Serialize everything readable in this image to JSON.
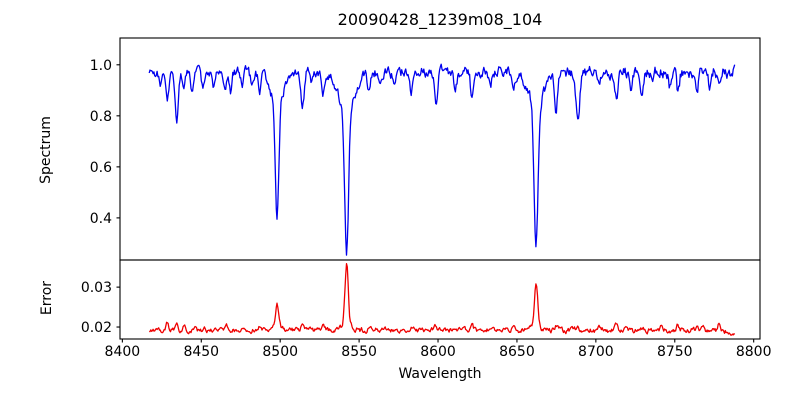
{
  "chart_data": {
    "type": "line",
    "title": "20090428_1239m08_104",
    "xlabel": "Wavelength",
    "grid": false,
    "legend": null,
    "x_range": {
      "start": 8417,
      "end": 8788,
      "step": 0.5
    },
    "xlim": [
      8398.5,
      8804
    ],
    "xticks": [
      8400,
      8450,
      8500,
      8550,
      8600,
      8650,
      8700,
      8750,
      8800
    ],
    "xtick_labels": [
      "8400",
      "8450",
      "8500",
      "8550",
      "8600",
      "8650",
      "8700",
      "8750",
      "8800"
    ],
    "features_format": "each feature = [center_wavelength_angstrom, gaussian_sigma_angstrom, amplitude (negative = absorption dip, positive = peak)]",
    "main_absorption_lines": [
      {
        "wavelength": 8498,
        "min_flux": 0.41
      },
      {
        "wavelength": 8542,
        "min_flux": 0.27
      },
      {
        "wavelength": 8662,
        "min_flux": 0.29
      }
    ],
    "panels": [
      {
        "name": "spectrum",
        "ylabel": "Spectrum",
        "color": "#0000ee",
        "ylim": [
          0.235,
          1.105
        ],
        "yticks": [
          0.4,
          0.6,
          0.8,
          1.0
        ],
        "ytick_labels": [
          "0.4",
          "0.6",
          "0.8",
          "1.0"
        ],
        "base_level": 0.972,
        "noise_scale": 0.034,
        "noise_ramp": 0.35,
        "noise_seed": 42,
        "features": [
          [
            8498.0,
            1.1,
            -0.45
          ],
          [
            8498.0,
            4.0,
            -0.13
          ],
          [
            8542.1,
            1.2,
            -0.55
          ],
          [
            8542.1,
            5.0,
            -0.15
          ],
          [
            8662.1,
            1.2,
            -0.54
          ],
          [
            8662.1,
            4.5,
            -0.14
          ],
          [
            8424.0,
            0.9,
            -0.05
          ],
          [
            8428.5,
            0.9,
            -0.12
          ],
          [
            8434.5,
            1.0,
            -0.2
          ],
          [
            8439.0,
            0.9,
            -0.05
          ],
          [
            8444.0,
            0.9,
            -0.07
          ],
          [
            8451.0,
            0.9,
            -0.06
          ],
          [
            8458.0,
            0.9,
            -0.07
          ],
          [
            8465.0,
            0.9,
            -0.06
          ],
          [
            8468.5,
            0.9,
            -0.08
          ],
          [
            8476.0,
            0.9,
            -0.05
          ],
          [
            8482.0,
            0.9,
            -0.05
          ],
          [
            8487.0,
            0.9,
            -0.07
          ],
          [
            8514.2,
            1.0,
            -0.13
          ],
          [
            8520.0,
            0.9,
            -0.05
          ],
          [
            8527.0,
            0.9,
            -0.08
          ],
          [
            8556.0,
            0.9,
            -0.05
          ],
          [
            8564.0,
            0.9,
            -0.05
          ],
          [
            8572.0,
            0.9,
            -0.04
          ],
          [
            8583.0,
            0.9,
            -0.08
          ],
          [
            8598.8,
            1.0,
            -0.13
          ],
          [
            8611.0,
            0.9,
            -0.06
          ],
          [
            8621.5,
            0.9,
            -0.1
          ],
          [
            8633.0,
            0.9,
            -0.06
          ],
          [
            8648.0,
            0.9,
            -0.06
          ],
          [
            8674.8,
            1.0,
            -0.14
          ],
          [
            8688.6,
            1.1,
            -0.2
          ],
          [
            8702.0,
            0.9,
            -0.06
          ],
          [
            8713.0,
            0.9,
            -0.1
          ],
          [
            8722.0,
            0.9,
            -0.06
          ],
          [
            8729.0,
            0.9,
            -0.08
          ],
          [
            8736.0,
            0.9,
            -0.05
          ],
          [
            8747.0,
            0.9,
            -0.06
          ],
          [
            8752.0,
            0.9,
            -0.09
          ],
          [
            8764.0,
            0.9,
            -0.08
          ],
          [
            8772.0,
            0.9,
            -0.05
          ],
          [
            8778.0,
            0.9,
            -0.06
          ]
        ]
      },
      {
        "name": "error",
        "ylabel": "Error",
        "color": "#ee0000",
        "ylim": [
          0.017,
          0.0368
        ],
        "yticks": [
          0.02,
          0.03
        ],
        "ytick_labels": [
          "0.02",
          "0.03"
        ],
        "base_level": 0.0192,
        "noise_scale": 0.0011,
        "noise_ramp": 0.2,
        "noise_seed": 7,
        "features": [
          [
            8498.0,
            0.9,
            0.006
          ],
          [
            8498.0,
            2.5,
            0.0012
          ],
          [
            8542.1,
            1.0,
            0.0148
          ],
          [
            8542.1,
            2.8,
            0.002
          ],
          [
            8662.1,
            1.0,
            0.0105
          ],
          [
            8662.1,
            2.5,
            0.0015
          ],
          [
            8428.5,
            0.8,
            0.0018
          ],
          [
            8434.5,
            0.8,
            0.0022
          ],
          [
            8439.0,
            0.8,
            0.0008
          ],
          [
            8446.0,
            0.8,
            0.0008
          ],
          [
            8452.0,
            0.8,
            0.0008
          ],
          [
            8466.0,
            0.8,
            0.0012
          ],
          [
            8476.0,
            0.8,
            0.0006
          ],
          [
            8487.0,
            0.8,
            0.0008
          ],
          [
            8514.2,
            0.8,
            0.0014
          ],
          [
            8527.0,
            0.8,
            0.0008
          ],
          [
            8556.0,
            0.8,
            0.0006
          ],
          [
            8583.0,
            0.8,
            0.0008
          ],
          [
            8598.8,
            0.8,
            0.0012
          ],
          [
            8611.0,
            0.8,
            0.0006
          ],
          [
            8621.5,
            0.8,
            0.001
          ],
          [
            8633.0,
            0.8,
            0.0006
          ],
          [
            8648.0,
            0.8,
            0.0008
          ],
          [
            8674.8,
            0.8,
            0.0012
          ],
          [
            8688.6,
            0.8,
            0.0018
          ],
          [
            8702.0,
            0.8,
            0.0006
          ],
          [
            8713.0,
            0.8,
            0.001
          ],
          [
            8729.0,
            0.8,
            0.0008
          ],
          [
            8742.0,
            0.8,
            0.001
          ],
          [
            8752.0,
            0.8,
            0.001
          ],
          [
            8764.0,
            0.8,
            0.0012
          ],
          [
            8768.0,
            0.8,
            0.0016
          ],
          [
            8778.0,
            0.8,
            0.0016
          ],
          [
            8786.0,
            2.0,
            -0.001
          ]
        ]
      }
    ],
    "axis_color": "#000000"
  }
}
